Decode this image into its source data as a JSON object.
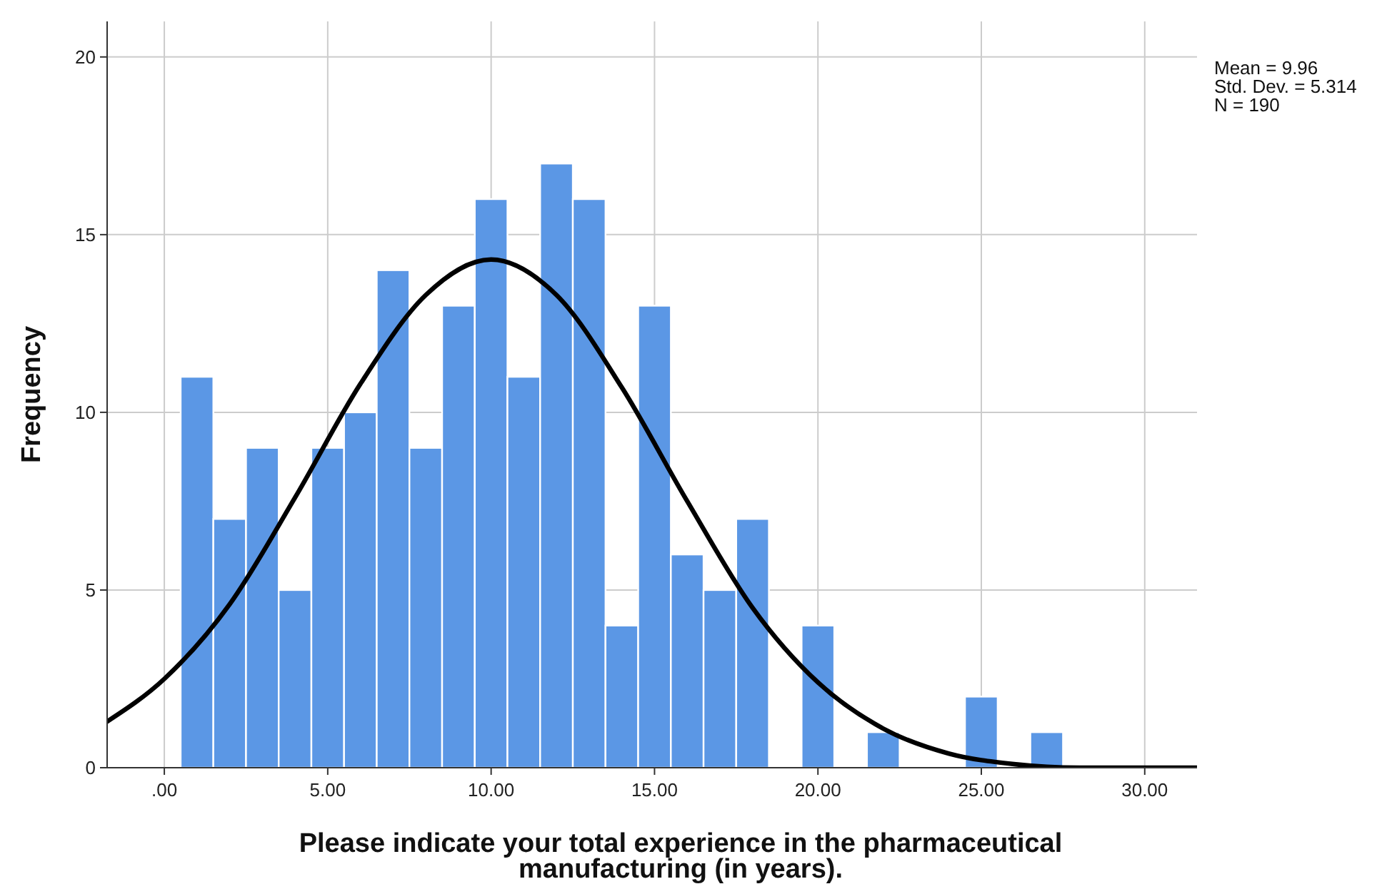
{
  "chart_data": {
    "type": "histogram",
    "xlabel": "Please indicate your total experience in the pharmaceutical manufacturing (in years).",
    "ylabel": "Frequency",
    "bins": [
      0.5,
      1.5,
      2.5,
      3.5,
      4.5,
      5.5,
      6.5,
      7.5,
      8.5,
      9.5,
      10.5,
      11.5,
      12.5,
      13.5,
      14.5,
      15.5,
      16.5,
      17.5,
      18.5,
      19.5,
      20.5,
      21.5,
      22.5,
      23.5,
      24.5,
      25.5,
      26.5,
      27.5
    ],
    "values": [
      11,
      7,
      9,
      5,
      9,
      10,
      14,
      9,
      13,
      16,
      11,
      17,
      16,
      4,
      13,
      6,
      5,
      7,
      0,
      4,
      0,
      1,
      0,
      0,
      2,
      0,
      1
    ],
    "color": "#5b97e5",
    "series": [
      {
        "type": "line",
        "color": "#000000",
        "x": [
          -1.75,
          0,
          2,
          4,
          6,
          8,
          10,
          12,
          14,
          16,
          18,
          20,
          22,
          24,
          26,
          28,
          30,
          31.6
        ],
        "values": [
          1.3,
          2.5,
          4.6,
          7.6,
          10.8,
          13.3,
          14.3,
          13.3,
          10.7,
          7.5,
          4.5,
          2.4,
          1.1,
          0.4,
          0.1,
          0,
          0,
          0
        ]
      }
    ],
    "xlim": [
      -1.75,
      31.6
    ],
    "ylim": [
      0,
      21
    ],
    "xticks": [
      {
        "value": 0,
        "label": ".00"
      },
      {
        "value": 5,
        "label": "5.00"
      },
      {
        "value": 10,
        "label": "10.00"
      },
      {
        "value": 15,
        "label": "15.00"
      },
      {
        "value": 20,
        "label": "20.00"
      },
      {
        "value": 25,
        "label": "25.00"
      },
      {
        "value": 30,
        "label": "30.00"
      }
    ],
    "yticks": [
      0,
      5,
      10,
      15,
      20
    ],
    "grid": true,
    "annotations": [
      "Mean = 9.96",
      "Std. Dev. = 5.314",
      "N = 190"
    ]
  }
}
